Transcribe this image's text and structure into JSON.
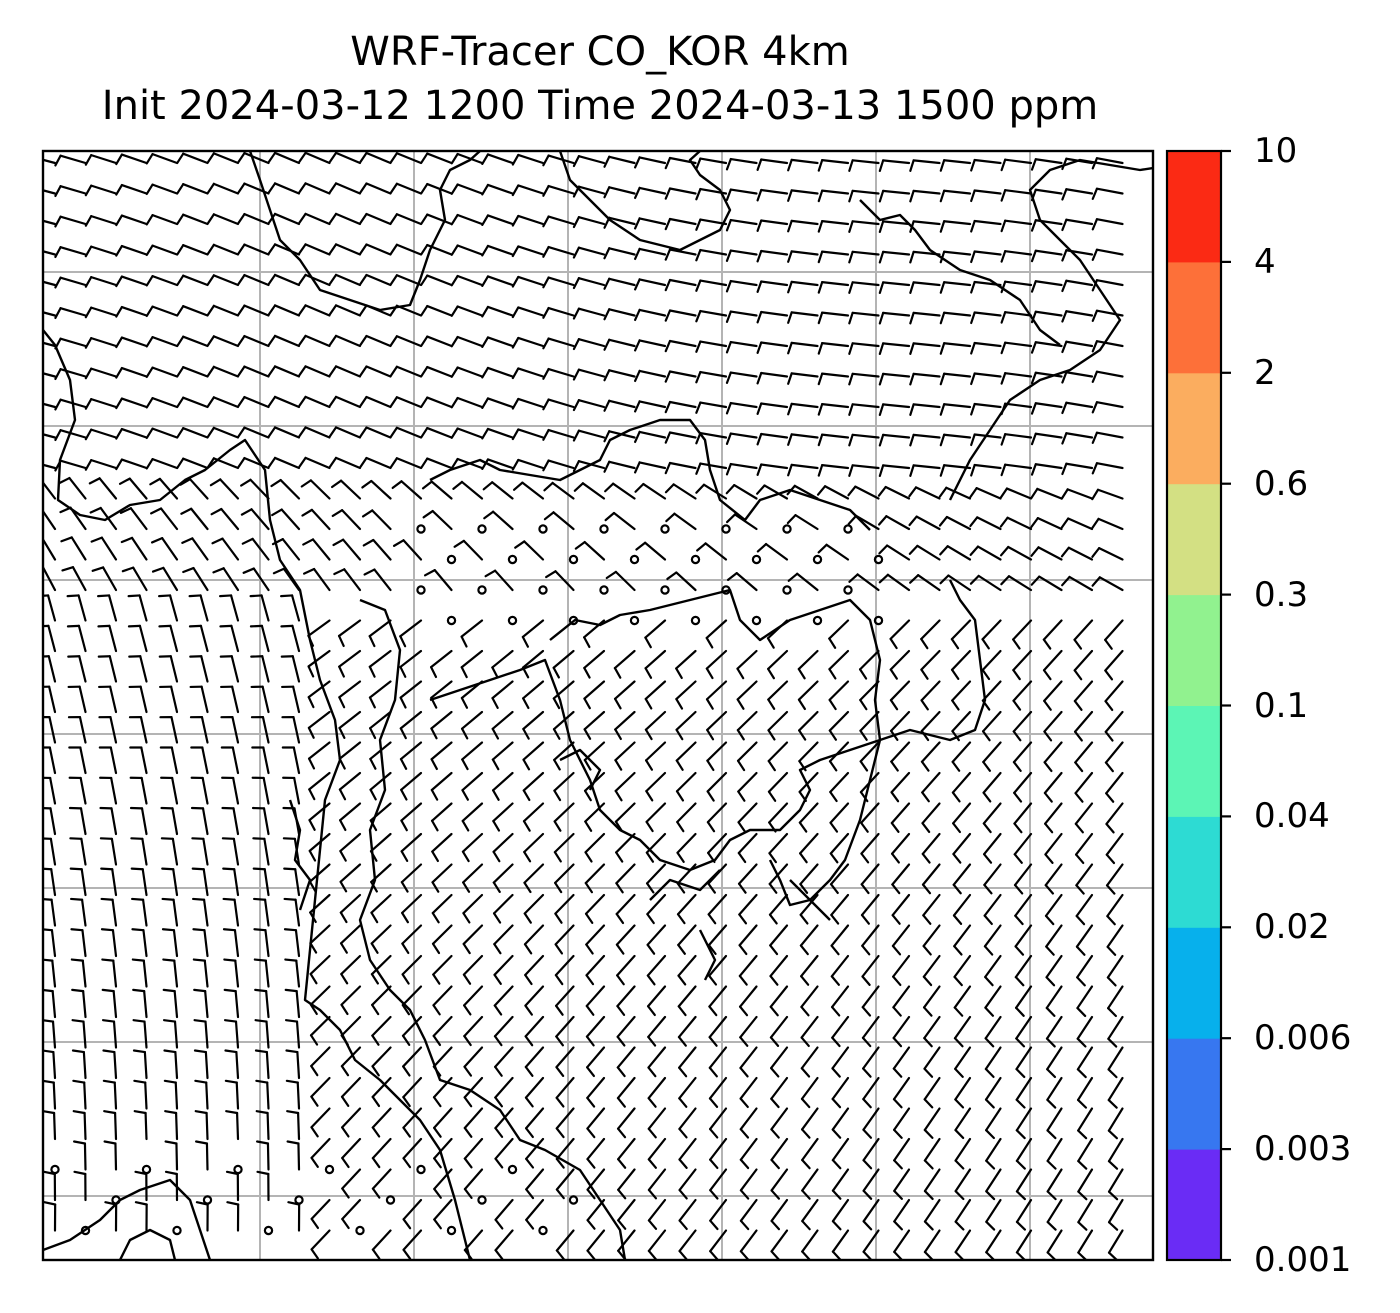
{
  "title": {
    "line1": "WRF-Tracer CO_KOR 4km",
    "line2": "Init 2024-03-12 1200 Time 2024-03-13 1500 ppm"
  },
  "colorbar": {
    "levels": [
      "0.001",
      "0.003",
      "0.006",
      "0.02",
      "0.04",
      "0.1",
      "0.3",
      "0.6",
      "2",
      "4",
      "10"
    ],
    "colors": [
      "#6a2cf5",
      "#3777f0",
      "#07b0ec",
      "#2ddbd3",
      "#5cf5b5",
      "#91f28f",
      "#d3e083",
      "#fbad5f",
      "#fd7039",
      "#fb2a14"
    ]
  },
  "map": {
    "gridlines": true,
    "gridline_color": "#b4b4b4",
    "coastline_color": "#000000",
    "wind_barb_color": "#000000",
    "calm_marker": "circle"
  }
}
